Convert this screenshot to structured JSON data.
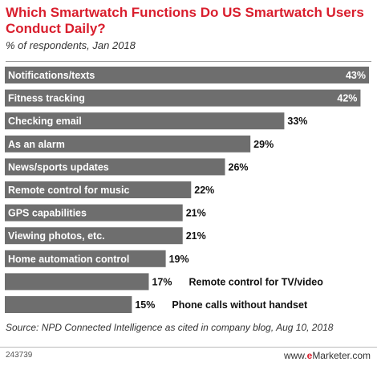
{
  "title": "Which Smartwatch Functions Do US Smartwatch Users Conduct Daily?",
  "subtitle": "% of respondents, Jan 2018",
  "source": "Source: NPD Connected Intelligence as cited in company blog, Aug 10, 2018",
  "footer_id": "243739",
  "brand_prefix": "www.",
  "brand_e": "e",
  "brand_rest": "Marketer.com",
  "colors": {
    "bar": "#6e6e6e",
    "title": "#d91e2d"
  },
  "chart_data": {
    "type": "bar",
    "orientation": "horizontal",
    "categories": [
      "Notifications/texts",
      "Fitness tracking",
      "Checking email",
      "As an alarm",
      "News/sports updates",
      "Remote control for music",
      "GPS capabilities",
      "Viewing photos, etc.",
      "Home automation control",
      "Remote control for TV/video",
      "Phone calls without handset"
    ],
    "values": [
      43,
      42,
      33,
      29,
      26,
      22,
      21,
      21,
      19,
      17,
      15
    ],
    "value_labels": [
      "43%",
      "42%",
      "33%",
      "29%",
      "26%",
      "22%",
      "21%",
      "21%",
      "19%",
      "17%",
      "15%"
    ],
    "title": "Which Smartwatch Functions Do US Smartwatch Users Conduct Daily?",
    "xlabel": "",
    "ylabel": "",
    "xlim": [
      0,
      43
    ],
    "grid": false,
    "legend": "none"
  }
}
